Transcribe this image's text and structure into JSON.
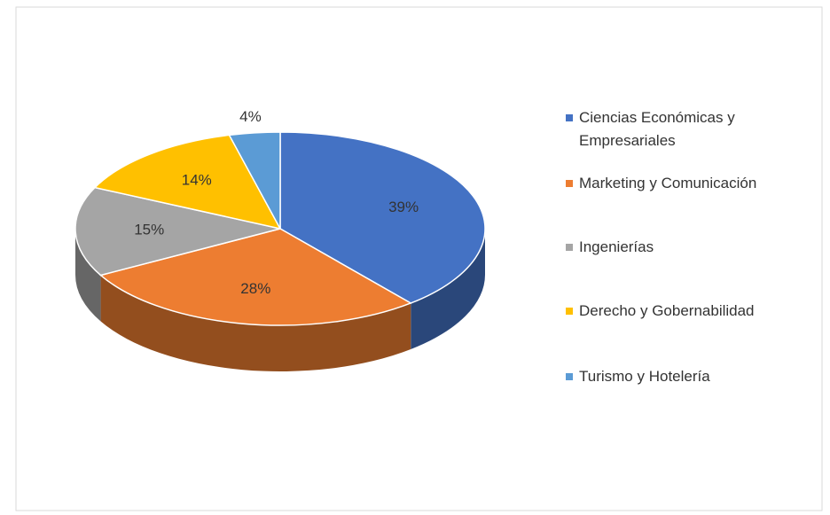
{
  "chart_data": {
    "type": "pie3d",
    "categories": [
      "Ciencias Económicas y Empresariales",
      "Marketing y Comunicación",
      "Ingenierías",
      "Derecho y Gobernabilidad",
      "Turismo y Hotelería"
    ],
    "values": [
      39,
      28,
      15,
      14,
      4
    ],
    "value_labels": [
      "39%",
      "28%",
      "15%",
      "14%",
      "4%"
    ],
    "colors": [
      "#4472c4",
      "#ed7d31",
      "#a5a5a5",
      "#ffc000",
      "#5b9bd5"
    ],
    "legend": "right"
  }
}
